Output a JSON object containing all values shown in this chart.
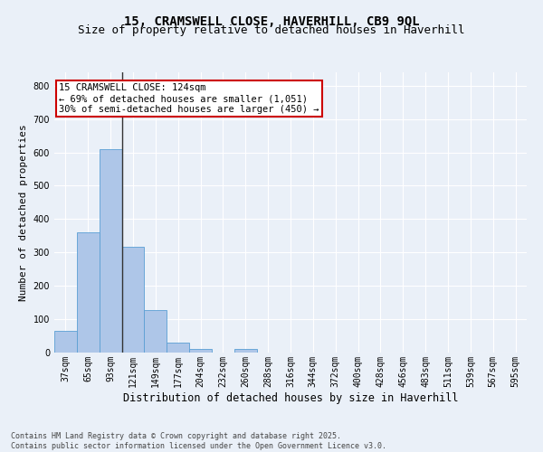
{
  "title": "15, CRAMSWELL CLOSE, HAVERHILL, CB9 9QL",
  "subtitle": "Size of property relative to detached houses in Haverhill",
  "xlabel": "Distribution of detached houses by size in Haverhill",
  "ylabel": "Number of detached properties",
  "categories": [
    "37sqm",
    "65sqm",
    "93sqm",
    "121sqm",
    "149sqm",
    "177sqm",
    "204sqm",
    "232sqm",
    "260sqm",
    "288sqm",
    "316sqm",
    "344sqm",
    "372sqm",
    "400sqm",
    "428sqm",
    "456sqm",
    "483sqm",
    "511sqm",
    "539sqm",
    "567sqm",
    "595sqm"
  ],
  "values": [
    65,
    360,
    610,
    318,
    128,
    30,
    10,
    0,
    10,
    0,
    0,
    0,
    0,
    0,
    0,
    0,
    0,
    0,
    0,
    0,
    0
  ],
  "bar_color": "#aec6e8",
  "bar_edge_color": "#5a9fd4",
  "vline_x_index": 3,
  "vline_color": "#333333",
  "annotation_text": "15 CRAMSWELL CLOSE: 124sqm\n← 69% of detached houses are smaller (1,051)\n30% of semi-detached houses are larger (450) →",
  "annotation_box_color": "#ffffff",
  "annotation_box_edge_color": "#cc0000",
  "ylim": [
    0,
    840
  ],
  "yticks": [
    0,
    100,
    200,
    300,
    400,
    500,
    600,
    700,
    800
  ],
  "background_color": "#eaf0f8",
  "grid_color": "#ffffff",
  "footer_line1": "Contains HM Land Registry data © Crown copyright and database right 2025.",
  "footer_line2": "Contains public sector information licensed under the Open Government Licence v3.0.",
  "title_fontsize": 10,
  "subtitle_fontsize": 9,
  "xlabel_fontsize": 8.5,
  "ylabel_fontsize": 8,
  "tick_fontsize": 7,
  "annotation_fontsize": 7.5,
  "footer_fontsize": 6
}
